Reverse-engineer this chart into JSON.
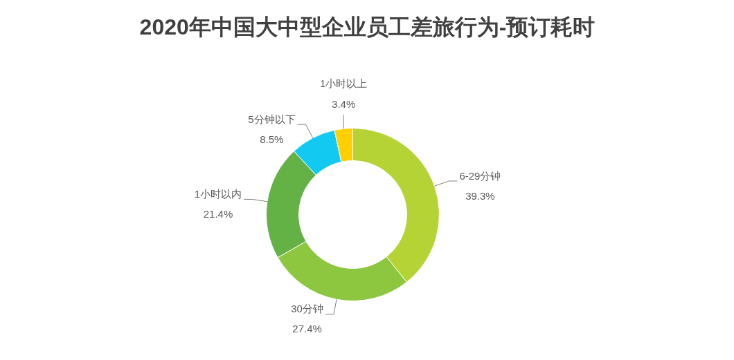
{
  "chart_data": {
    "type": "donut",
    "title": "2020年中国大中型企业员工差旅行为-预订耗时",
    "categories": [
      "6-29分钟",
      "30分钟",
      "1小时以内",
      "5分钟以下",
      "1小时以上"
    ],
    "values": [
      39.3,
      27.4,
      21.4,
      8.5,
      3.4
    ],
    "colors": [
      "#b5d334",
      "#8dc63f",
      "#64b245",
      "#12c9f1",
      "#ffcf00"
    ],
    "value_labels": [
      "39.3%",
      "27.4%",
      "21.4%",
      "8.5%",
      "3.4%"
    ]
  }
}
